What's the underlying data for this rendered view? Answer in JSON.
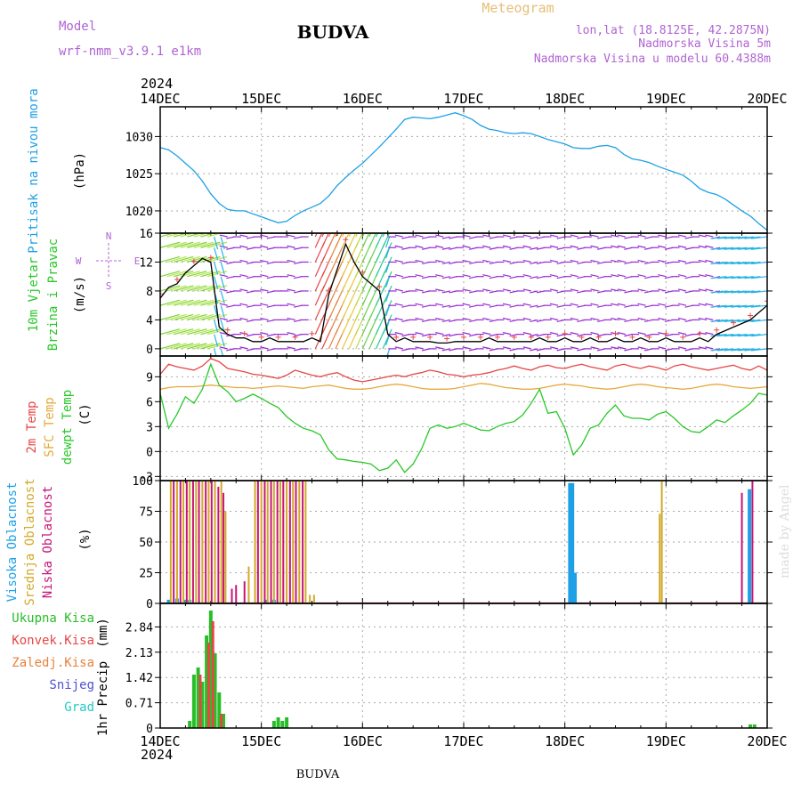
{
  "header": {
    "model_label": "Model",
    "model_name": "wrf-nmm_v3.9.1  e1km",
    "title": "BUDVA",
    "meteogram": "Meteogram",
    "lonlat": "lon,lat (18.8125E, 42.2875N)",
    "elevation": "Nadmorska Visina 5m",
    "model_elevation": "Nadmorska Visina u modelu 60.4388m",
    "year": "2024",
    "footer": "BUDVA",
    "credit": "made by Angel"
  },
  "colors": {
    "pressure": "#1ea0e6",
    "t2m": "#e64646",
    "sfc": "#e6aa3c",
    "dewpt": "#28c828",
    "high_cloud": "#1ea0e6",
    "mid_cloud": "#d2aa28",
    "low_cloud": "#c81478",
    "total_rain": "#28be28",
    "conv_rain": "#e64646",
    "freezing": "#e6823c",
    "snow": "#5050d2",
    "hail": "#28c8c8",
    "wind_purple": "#9628d2",
    "wind_cyan": "#28b4e6"
  },
  "x_axis": {
    "ticks": [
      "14DEC",
      "15DEC",
      "16DEC",
      "17DEC",
      "18DEC",
      "19DEC",
      "20DEC"
    ],
    "range_hours": [
      0,
      144
    ]
  },
  "chart_data": [
    {
      "type": "line",
      "panel": "pressure",
      "ylabel_lines": [
        "Pritisak na nivou mora",
        "(hPa)"
      ],
      "ylim": [
        1017,
        1034
      ],
      "yticks": [
        1020,
        1025,
        1030
      ],
      "x": [
        0,
        2,
        4,
        6,
        8,
        10,
        12,
        14,
        16,
        18,
        20,
        22,
        24,
        26,
        28,
        30,
        32,
        34,
        36,
        38,
        40,
        42,
        44,
        46,
        48,
        50,
        52,
        54,
        56,
        58,
        60,
        62,
        64,
        66,
        68,
        70,
        72,
        74,
        76,
        78,
        80,
        82,
        84,
        86,
        88,
        90,
        92,
        94,
        96,
        98,
        100,
        102,
        104,
        106,
        108,
        110,
        112,
        114,
        116,
        118,
        120,
        122,
        124,
        126,
        128,
        130,
        132,
        134,
        136,
        138,
        140,
        142,
        144
      ],
      "series": [
        {
          "values": [
            1028.5,
            1028.2,
            1027.4,
            1026.4,
            1025.4,
            1024.0,
            1022.3,
            1021.0,
            1020.2,
            1020.0,
            1020.0,
            1019.6,
            1019.2,
            1018.8,
            1018.4,
            1018.6,
            1019.4,
            1020.0,
            1020.5,
            1021.0,
            1022.0,
            1023.4,
            1024.5,
            1025.5,
            1026.4,
            1027.5,
            1028.6,
            1029.8,
            1031.0,
            1032.3,
            1032.6,
            1032.5,
            1032.4,
            1032.6,
            1032.9,
            1033.2,
            1032.8,
            1032.3,
            1031.5,
            1031.0,
            1030.8,
            1030.5,
            1030.4,
            1030.5,
            1030.4,
            1030.0,
            1029.6,
            1029.3,
            1029.0,
            1028.5,
            1028.4,
            1028.4,
            1028.7,
            1028.8,
            1028.5,
            1027.6,
            1027.0,
            1026.8,
            1026.5,
            1026.0,
            1025.6,
            1025.2,
            1024.8,
            1024.0,
            1023.0,
            1022.5,
            1022.2,
            1021.6,
            1020.8,
            1020.0,
            1019.3,
            1018.3,
            1017.4
          ]
        }
      ]
    },
    {
      "type": "line",
      "panel": "wind",
      "ylabel_lines": [
        "10m Vjetar",
        "Brzina i Pravac",
        "(m/s)"
      ],
      "compass": [
        "N",
        "S",
        "W",
        "E"
      ],
      "ylim": [
        -1,
        16
      ],
      "yticks": [
        0,
        4,
        8,
        12,
        16
      ],
      "x": [
        0,
        2,
        4,
        6,
        8,
        10,
        12,
        14,
        16,
        18,
        20,
        22,
        24,
        26,
        28,
        30,
        32,
        34,
        36,
        38,
        40,
        42,
        44,
        46,
        48,
        50,
        52,
        54,
        56,
        58,
        60,
        62,
        64,
        66,
        68,
        70,
        72,
        74,
        76,
        78,
        80,
        82,
        84,
        86,
        88,
        90,
        92,
        94,
        96,
        98,
        100,
        102,
        104,
        106,
        108,
        110,
        112,
        114,
        116,
        118,
        120,
        122,
        124,
        126,
        128,
        130,
        132,
        134,
        136,
        138,
        140,
        142,
        144
      ],
      "series": [
        {
          "values": [
            7.0,
            8.5,
            9.0,
            10.5,
            11.5,
            12.5,
            12.0,
            3.0,
            2.0,
            1.5,
            1.5,
            1.0,
            1.0,
            1.5,
            1.0,
            1.0,
            1.0,
            1.0,
            1.5,
            1.0,
            7.5,
            11.0,
            14.5,
            12.0,
            10.0,
            9.0,
            8.0,
            2.0,
            1.0,
            1.5,
            1.0,
            1.0,
            1.0,
            0.8,
            0.8,
            1.0,
            1.0,
            1.0,
            1.0,
            1.5,
            1.0,
            1.0,
            1.0,
            1.0,
            1.0,
            1.5,
            1.0,
            1.0,
            1.5,
            1.0,
            1.0,
            1.5,
            1.0,
            1.0,
            1.5,
            1.0,
            1.0,
            1.5,
            1.0,
            1.0,
            1.5,
            1.0,
            1.0,
            1.0,
            1.5,
            1.0,
            2.0,
            2.5,
            3.0,
            3.5,
            4.0,
            5.0,
            6.0
          ]
        }
      ]
    },
    {
      "type": "line",
      "panel": "temperature",
      "ylabel_lines": [
        "2m Temp",
        "SFC Temp",
        "dewpt Temp",
        "(C)"
      ],
      "ylim": [
        -3.5,
        11.5
      ],
      "yticks": [
        -3,
        0,
        3,
        6,
        9
      ],
      "x": [
        0,
        2,
        4,
        6,
        8,
        10,
        12,
        14,
        16,
        18,
        20,
        22,
        24,
        26,
        28,
        30,
        32,
        34,
        36,
        38,
        40,
        42,
        44,
        46,
        48,
        50,
        52,
        54,
        56,
        58,
        60,
        62,
        64,
        66,
        68,
        70,
        72,
        74,
        76,
        78,
        80,
        82,
        84,
        86,
        88,
        90,
        92,
        94,
        96,
        98,
        100,
        102,
        104,
        106,
        108,
        110,
        112,
        114,
        116,
        118,
        120,
        122,
        124,
        126,
        128,
        130,
        132,
        134,
        136,
        138,
        140,
        142,
        144
      ],
      "series": [
        {
          "name": "2m Temp",
          "values": [
            9.3,
            10.5,
            10.2,
            10.0,
            9.8,
            10.3,
            11.2,
            10.8,
            10.0,
            9.8,
            9.6,
            9.3,
            9.2,
            9.0,
            8.8,
            9.2,
            9.8,
            9.5,
            9.2,
            9.0,
            9.3,
            9.5,
            9.0,
            8.6,
            8.4,
            8.6,
            8.8,
            9.0,
            9.2,
            9.0,
            9.3,
            9.5,
            9.8,
            9.6,
            9.3,
            9.2,
            9.0,
            9.2,
            9.3,
            9.5,
            9.8,
            10.0,
            10.3,
            10.0,
            9.8,
            10.2,
            10.4,
            10.1,
            10.0,
            10.3,
            10.5,
            10.2,
            10.0,
            9.8,
            10.3,
            10.5,
            10.2,
            10.0,
            10.3,
            10.1,
            9.8,
            10.3,
            10.5,
            10.2,
            10.0,
            9.8,
            10.0,
            10.2,
            10.4,
            10.0,
            9.8,
            10.3,
            9.8
          ]
        },
        {
          "name": "SFC Temp",
          "values": [
            7.5,
            7.7,
            7.8,
            7.8,
            7.8,
            7.9,
            8.0,
            7.9,
            7.8,
            7.7,
            7.7,
            7.6,
            7.7,
            7.8,
            7.9,
            7.8,
            7.7,
            7.6,
            7.8,
            7.9,
            8.0,
            7.8,
            7.6,
            7.5,
            7.5,
            7.6,
            7.8,
            8.0,
            8.1,
            8.0,
            7.8,
            7.6,
            7.5,
            7.5,
            7.5,
            7.6,
            7.8,
            8.0,
            8.2,
            8.1,
            7.9,
            7.7,
            7.6,
            7.5,
            7.5,
            7.6,
            7.8,
            8.0,
            8.1,
            8.0,
            7.9,
            7.7,
            7.6,
            7.5,
            7.6,
            7.8,
            8.0,
            8.1,
            8.0,
            7.8,
            7.7,
            7.6,
            7.5,
            7.6,
            7.8,
            8.0,
            8.1,
            8.0,
            7.8,
            7.7,
            7.6,
            7.7,
            7.8
          ]
        },
        {
          "name": "dewpt Temp",
          "values": [
            7.0,
            2.8,
            4.5,
            6.6,
            5.8,
            7.5,
            10.5,
            8.0,
            7.2,
            6.0,
            6.4,
            6.9,
            6.4,
            5.8,
            5.3,
            4.2,
            3.4,
            2.8,
            2.5,
            2.0,
            0.2,
            -0.9,
            -1.0,
            -1.2,
            -1.3,
            -1.5,
            -2.3,
            -2.0,
            -1.0,
            -2.5,
            -1.5,
            0.3,
            2.8,
            3.2,
            2.8,
            3.0,
            3.4,
            3.0,
            2.6,
            2.5,
            3.0,
            3.4,
            3.6,
            4.4,
            5.8,
            7.5,
            4.6,
            4.8,
            2.8,
            -0.4,
            0.8,
            2.8,
            3.2,
            4.6,
            5.6,
            4.3,
            4.0,
            4.0,
            3.8,
            4.5,
            4.8,
            4.0,
            3.0,
            2.4,
            2.3,
            3.0,
            3.8,
            3.5,
            4.3,
            5.0,
            5.8,
            7.0,
            6.8
          ]
        }
      ]
    },
    {
      "type": "bar",
      "panel": "cloud",
      "ylabel_lines": [
        "Visoka Oblacnost",
        "Srednja Oblacnost",
        "Niska Oblacnost",
        "(%)"
      ],
      "ylim": [
        0,
        100
      ],
      "yticks": [
        0,
        25,
        50,
        75,
        100
      ],
      "series": [
        {
          "name": "Visoka Oblacnost",
          "x": [
            2,
            4,
            6,
            7,
            25,
            27,
            97.2,
            97.8,
            98.4,
            139.8
          ],
          "values": [
            3,
            4,
            3,
            3,
            3,
            3,
            98,
            98,
            25,
            93
          ]
        },
        {
          "name": "Srednja Oblacnost",
          "x": [
            2.5,
            4,
            5.5,
            7,
            8.5,
            10,
            11.5,
            13,
            14.5,
            15.5,
            21,
            22.5,
            24,
            25.5,
            27,
            28.5,
            30,
            31.5,
            33,
            34.5,
            35.5,
            36.5,
            118.5,
            119
          ],
          "values": [
            100,
            100,
            100,
            100,
            100,
            100,
            100,
            100,
            100,
            75,
            30,
            100,
            100,
            100,
            100,
            100,
            100,
            100,
            100,
            100,
            7,
            7,
            73,
            100
          ]
        },
        {
          "name": "Niska Oblacnost",
          "x": [
            3.2,
            4.8,
            6.3,
            7.8,
            9.2,
            10.8,
            12.2,
            13.8,
            15,
            17,
            18,
            20,
            23.2,
            24.8,
            26.3,
            27.8,
            29.2,
            30.8,
            32.2,
            33.8,
            138,
            140.5
          ],
          "values": [
            100,
            100,
            100,
            100,
            100,
            100,
            100,
            95,
            90,
            12,
            15,
            18,
            100,
            100,
            100,
            100,
            100,
            100,
            100,
            100,
            90,
            100
          ]
        }
      ]
    },
    {
      "type": "bar",
      "panel": "precip",
      "ylabel_lines": [
        "1hr Precip",
        "(mm)"
      ],
      "ylim": [
        0,
        3.5
      ],
      "yticks": [
        0,
        0.71,
        1.42,
        2.13,
        2.84
      ],
      "series": [
        {
          "name": "Ukupna Kisa",
          "x": [
            7,
            8,
            9,
            10,
            11,
            12,
            13,
            14,
            15,
            27,
            28,
            29,
            30,
            140,
            141
          ],
          "values": [
            0.2,
            1.5,
            1.7,
            1.3,
            2.6,
            3.3,
            2.1,
            1.0,
            0.4,
            0.2,
            0.3,
            0.2,
            0.3,
            0.1,
            0.1
          ]
        },
        {
          "name": "Konvek.Kisa",
          "x": [
            9.5,
            11.5,
            12.5,
            14.5
          ],
          "values": [
            1.5,
            2.4,
            3.0,
            0.4
          ]
        },
        {
          "name": "Zaledj.Kisa",
          "x": [],
          "values": []
        },
        {
          "name": "Snijeg",
          "x": [],
          "values": []
        },
        {
          "name": "Grad",
          "x": [],
          "values": []
        }
      ]
    }
  ]
}
